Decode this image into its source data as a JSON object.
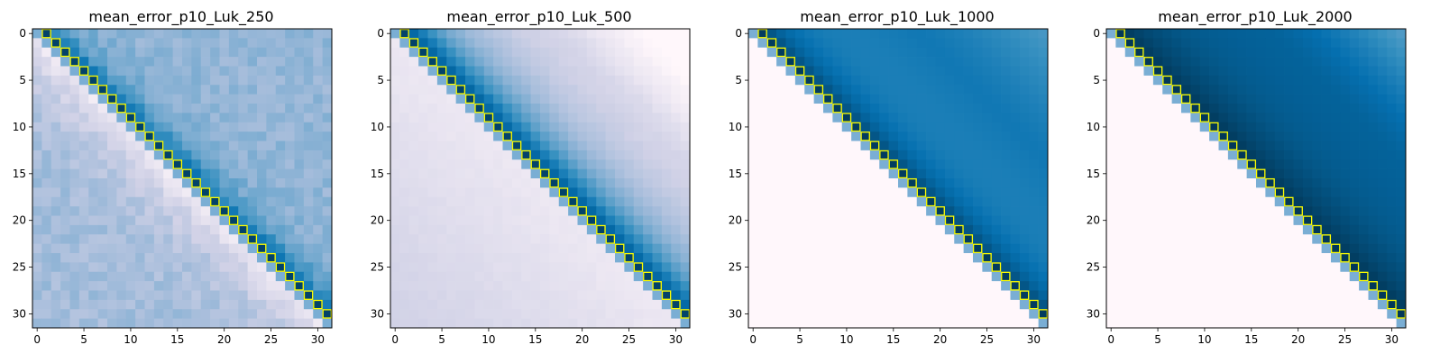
{
  "chart_data": [
    {
      "type": "heatmap",
      "title": "mean_error_p10_Luk_250",
      "grid_size": 32,
      "x_ticks": [
        "0",
        "5",
        "10",
        "15",
        "20",
        "25",
        "30"
      ],
      "y_ticks": [
        "0",
        "5",
        "10",
        "15",
        "20",
        "25",
        "30"
      ],
      "pattern": {
        "upper_base": 0.42,
        "upper_near_diag_gain": 0.4,
        "upper_near_diag_decay": 2.5,
        "upper_far_gain": 0.0,
        "upper_far_power": 1.0,
        "lower_base": 0.38,
        "lower_near_diag_drop": 0.26,
        "lower_near_diag_decay": 4.0,
        "noise": 0.1,
        "dark_corner_gain": 0.0,
        "dark_corner_power": 1.0,
        "top_right_fade": 0.0
      }
    },
    {
      "type": "heatmap",
      "title": "mean_error_p10_Luk_500",
      "grid_size": 32,
      "x_ticks": [
        "0",
        "5",
        "10",
        "15",
        "20",
        "25",
        "30"
      ],
      "y_ticks": [
        "0",
        "5",
        "10",
        "15",
        "20",
        "25",
        "30"
      ],
      "pattern": {
        "upper_base": 0.18,
        "upper_near_diag_gain": 0.72,
        "upper_near_diag_decay": 6.0,
        "upper_far_gain": 0.0,
        "upper_far_power": 1.0,
        "lower_base": 0.06,
        "lower_near_diag_drop": 0.0,
        "lower_near_diag_decay": 4.0,
        "noise": 0.02,
        "dark_corner_gain": 0.0,
        "dark_corner_power": 1.0,
        "lower_far_purple": 0.14,
        "top_right_fade": 0.35
      }
    },
    {
      "type": "heatmap",
      "title": "mean_error_p10_Luk_1000",
      "grid_size": 32,
      "x_ticks": [
        "0",
        "5",
        "10",
        "15",
        "20",
        "25",
        "30"
      ],
      "y_ticks": [
        "0",
        "5",
        "10",
        "15",
        "20",
        "25",
        "30"
      ],
      "pattern": {
        "upper_base": 0.62,
        "upper_near_diag_gain": 0.36,
        "upper_near_diag_decay": 3.0,
        "upper_far_gain": 0.0,
        "upper_far_power": 1.0,
        "lower_base": 0.0,
        "lower_near_diag_drop": 0.0,
        "lower_near_diag_decay": 4.0,
        "noise": 0.0,
        "dark_corner_gain": 0.18,
        "dark_corner_power": 1.0,
        "lower_far_purple": 0.0,
        "top_right_fade": 0.22
      }
    },
    {
      "type": "heatmap",
      "title": "mean_error_p10_Luk_2000",
      "grid_size": 32,
      "x_ticks": [
        "0",
        "5",
        "10",
        "15",
        "20",
        "25",
        "30"
      ],
      "y_ticks": [
        "0",
        "5",
        "10",
        "15",
        "20",
        "25",
        "30"
      ],
      "pattern": {
        "upper_base": 0.8,
        "upper_near_diag_gain": 0.2,
        "upper_near_diag_decay": 8.0,
        "upper_far_gain": 0.0,
        "upper_far_power": 1.0,
        "lower_base": 0.0,
        "lower_near_diag_drop": 0.0,
        "lower_near_diag_decay": 4.0,
        "noise": 0.0,
        "dark_corner_gain": 0.0,
        "dark_corner_power": 1.0,
        "lower_far_purple": 0.0,
        "top_right_fade": 0.25
      }
    }
  ],
  "colors": {
    "diag_cell": "#7aaed4",
    "highlight_outline": "#ffff00",
    "colormap": "PuBu"
  }
}
